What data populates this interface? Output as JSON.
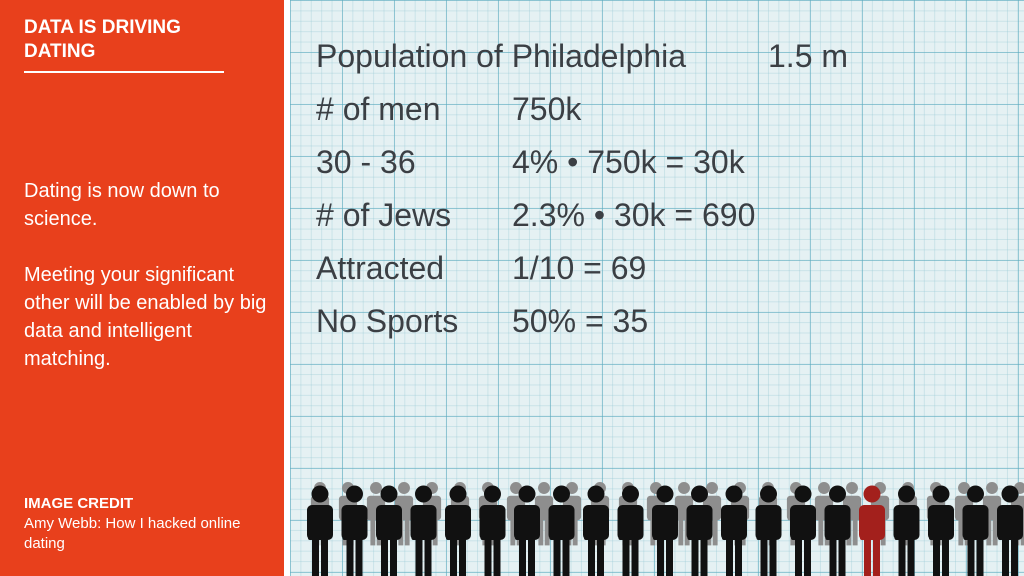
{
  "slide": {
    "title": "DATA IS DRIVING DATING",
    "paragraphs": [
      "Dating is now down to science.",
      "Meeting your significant other will be enabled by big data and intelligent matching."
    ],
    "credit_heading": "IMAGE CREDIT",
    "credit_text": "Amy Webb: How I hacked online dating"
  },
  "image": {
    "rows": [
      {
        "label": "Population of Philadelphia",
        "value": "1.5 m"
      },
      {
        "label": "# of men",
        "value": "750k"
      },
      {
        "label": "30 - 36",
        "value": "4% • 750k = 30k"
      },
      {
        "label": "# of Jews",
        "value": "2.3% • 30k = 690"
      },
      {
        "label": "Attracted",
        "value": "1/10 = 69"
      },
      {
        "label": "No Sports",
        "value": "50% = 35"
      }
    ],
    "crowd": {
      "figure_color": "#111111",
      "highlight_color": "#a3201c",
      "back_row_color": "#8e8e8e"
    }
  },
  "colors": {
    "panel_background": "#e8401c",
    "panel_text": "#ffffff",
    "paper_background": "#e5f1f3",
    "grid_line": "#5aaabe"
  }
}
